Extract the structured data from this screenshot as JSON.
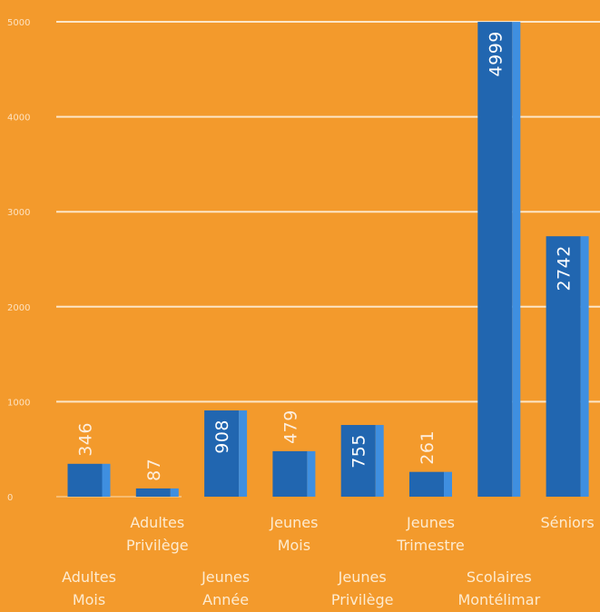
{
  "chart_data": {
    "type": "bar",
    "title": "",
    "xlabel": "",
    "ylabel": "",
    "ylim": [
      0,
      5000
    ],
    "yticks": [
      0,
      1000,
      2000,
      3000,
      4000,
      5000
    ],
    "grid": true,
    "colors": {
      "background": "#f39a2c",
      "bar_front": "#2166b0",
      "bar_side": "#3f8fe0",
      "grid": "#fde6c6",
      "value_on_bar": "#ffffff",
      "value_above_bar": "#fdeedd"
    },
    "categories": [
      {
        "label_lines": [
          "Adultes",
          "Mois"
        ],
        "label_row": "lower",
        "value": 346,
        "value_label": "346"
      },
      {
        "label_lines": [
          "Adultes",
          "Privilège"
        ],
        "label_row": "upper",
        "value": 87,
        "value_label": "87"
      },
      {
        "label_lines": [
          "Jeunes",
          "Année"
        ],
        "label_row": "lower",
        "value": 908,
        "value_label": "908"
      },
      {
        "label_lines": [
          "Jeunes",
          "Mois"
        ],
        "label_row": "upper",
        "value": 479,
        "value_label": "479"
      },
      {
        "label_lines": [
          "Jeunes",
          "Privilège"
        ],
        "label_row": "lower",
        "value": 755,
        "value_label": "755"
      },
      {
        "label_lines": [
          "Jeunes",
          "Trimestre"
        ],
        "label_row": "upper",
        "value": 261,
        "value_label": "261"
      },
      {
        "label_lines": [
          "Scolaires",
          "Montélimar"
        ],
        "label_row": "lower",
        "value": 4999,
        "value_label": "4999"
      },
      {
        "label_lines": [
          "Séniors"
        ],
        "label_row": "upper",
        "value": 2742,
        "value_label": "2742"
      }
    ]
  }
}
